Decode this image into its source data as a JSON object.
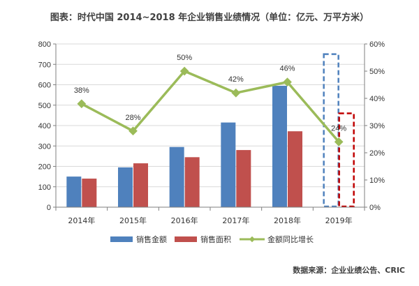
{
  "chart_data": {
    "type": "bar",
    "title": "图表：时代中国 2014~2018 年企业销售业绩情况（单位：亿元、万平方米）",
    "categories": [
      "2014年",
      "2015年",
      "2016年",
      "2017年",
      "2018年",
      "2019年"
    ],
    "series": [
      {
        "name": "销售金额",
        "type": "bar",
        "axis": "left",
        "color": "#4f81bd",
        "values": [
          150,
          195,
          295,
          415,
          595,
          null
        ]
      },
      {
        "name": "销售面积",
        "type": "bar",
        "axis": "left",
        "color": "#c0504d",
        "values": [
          140,
          215,
          245,
          280,
          372,
          null
        ]
      },
      {
        "name": "金额同比增长",
        "type": "line",
        "axis": "right",
        "color": "#9bbb59",
        "values": [
          38,
          28,
          50,
          42,
          46,
          24
        ],
        "labels": [
          "38%",
          "28%",
          "50%",
          "42%",
          "46%",
          "24%"
        ]
      }
    ],
    "forecast_boxes": [
      {
        "category": "2019年",
        "series": "销售金额",
        "value": 750,
        "color": "#4f81bd"
      },
      {
        "category": "2019年",
        "series": "销售面积",
        "value": 460,
        "color": "#c00000"
      }
    ],
    "ylim_left": [
      0,
      800
    ],
    "yticks_left": [
      "0",
      "100",
      "200",
      "300",
      "400",
      "500",
      "600",
      "700",
      "800"
    ],
    "ylim_right": [
      0,
      60
    ],
    "yticks_right": [
      "0%",
      "10%",
      "20%",
      "30%",
      "40%",
      "50%",
      "60%"
    ],
    "grid": true,
    "legend_position": "bottom"
  },
  "source": "数据来源：企业业绩公告、CRIC"
}
